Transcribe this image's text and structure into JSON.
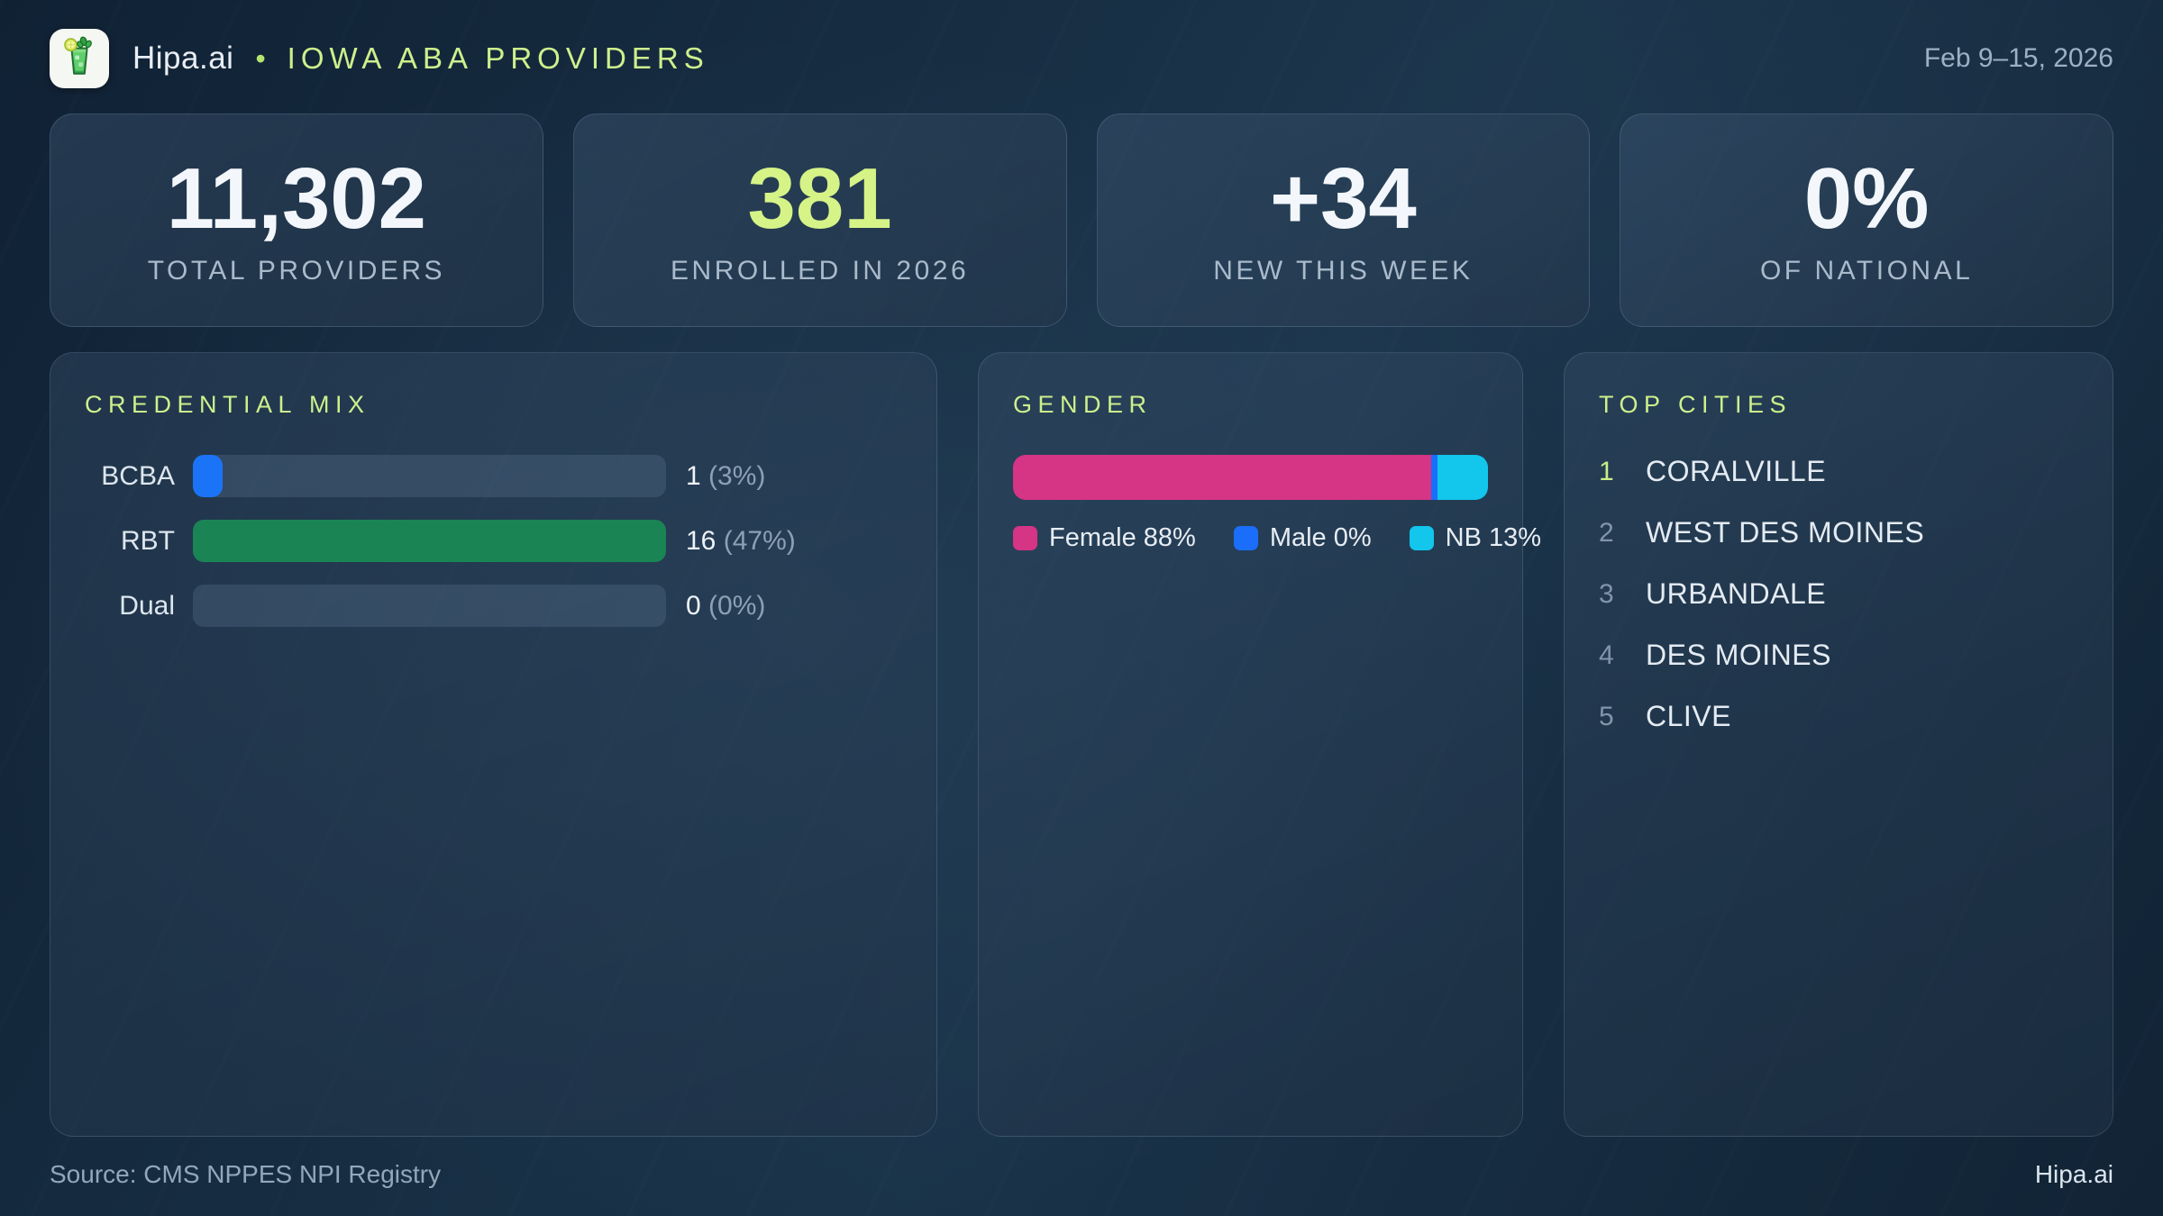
{
  "header": {
    "brand": "Hipa.ai",
    "separator": "•",
    "title": "IOWA ABA PROVIDERS",
    "date_range": "Feb 9–15, 2026"
  },
  "stats": [
    {
      "value": "11,302",
      "label": "TOTAL PROVIDERS"
    },
    {
      "value": "381",
      "label": "ENROLLED IN 2026"
    },
    {
      "value": "+34",
      "label": "NEW THIS WEEK"
    },
    {
      "value": "0%",
      "label": "OF NATIONAL"
    }
  ],
  "credential_mix": {
    "title": "CREDENTIAL MIX",
    "rows": [
      {
        "label": "BCBA",
        "count": "1",
        "percent": "(3%)",
        "fill_pct": 6.25,
        "color": "#1b74f7"
      },
      {
        "label": "RBT",
        "count": "16",
        "percent": "(47%)",
        "fill_pct": 100,
        "color": "#1a8455"
      },
      {
        "label": "Dual",
        "count": "0",
        "percent": "(0%)",
        "fill_pct": 0,
        "color": "#1b74f7"
      }
    ]
  },
  "gender": {
    "title": "GENDER",
    "segments": [
      {
        "name": "Female",
        "pct": 88,
        "fill_pct": 88,
        "color": "#d63485"
      },
      {
        "name": "Male",
        "pct": 0,
        "fill_pct": 1.3,
        "color": "#1a6efa"
      },
      {
        "name": "NB",
        "pct": 13,
        "fill_pct": 10.7,
        "color": "#12c6ec"
      }
    ],
    "legend": [
      {
        "label": "Female 88%",
        "color": "#d63485"
      },
      {
        "label": "Male 0%",
        "color": "#1a6efa"
      },
      {
        "label": "NB 13%",
        "color": "#12c6ec"
      }
    ]
  },
  "top_cities": {
    "title": "TOP CITIES",
    "items": [
      {
        "rank": "1",
        "city": "CORALVILLE"
      },
      {
        "rank": "2",
        "city": "WEST DES MOINES"
      },
      {
        "rank": "3",
        "city": "URBANDALE"
      },
      {
        "rank": "4",
        "city": "DES MOINES"
      },
      {
        "rank": "5",
        "city": "CLIVE"
      }
    ]
  },
  "footer": {
    "source": "Source: CMS NPPES NPI Registry",
    "brand": "Hipa.ai"
  },
  "colors": {
    "accent_green": "#cdf08c",
    "bcba_blue": "#1b74f7",
    "rbt_green": "#1a8455",
    "female_pink": "#d63485",
    "male_blue": "#1a6efa",
    "nb_cyan": "#12c6ec",
    "background": "#16293e",
    "card": "#253a4f"
  },
  "chart_data": [
    {
      "type": "bar",
      "title": "CREDENTIAL MIX",
      "orientation": "horizontal",
      "categories": [
        "BCBA",
        "RBT",
        "Dual"
      ],
      "values": [
        1,
        16,
        0
      ],
      "percent_labels": [
        "3%",
        "47%",
        "0%"
      ],
      "xlabel": "",
      "ylabel": "",
      "note": "bar lengths normalized to max value (RBT = 16)"
    },
    {
      "type": "bar",
      "title": "GENDER",
      "subtype": "stacked-100pct-single-bar",
      "series": [
        {
          "name": "Female",
          "values": [
            88
          ]
        },
        {
          "name": "Male",
          "values": [
            0
          ]
        },
        {
          "name": "NB",
          "values": [
            13
          ]
        }
      ],
      "legend_entries": [
        "Female 88%",
        "Male 0%",
        "NB 13%"
      ],
      "legend_position": "bottom"
    },
    {
      "type": "table",
      "title": "TOP CITIES",
      "rows": [
        [
          "1",
          "CORALVILLE"
        ],
        [
          "2",
          "WEST DES MOINES"
        ],
        [
          "3",
          "URBANDALE"
        ],
        [
          "4",
          "DES MOINES"
        ],
        [
          "5",
          "CLIVE"
        ]
      ]
    },
    {
      "type": "table",
      "title": "KPI CARDS",
      "rows": [
        [
          "TOTAL PROVIDERS",
          "11,302"
        ],
        [
          "ENROLLED IN 2026",
          "381"
        ],
        [
          "NEW THIS WEEK",
          "+34"
        ],
        [
          "OF NATIONAL",
          "0%"
        ]
      ]
    }
  ]
}
